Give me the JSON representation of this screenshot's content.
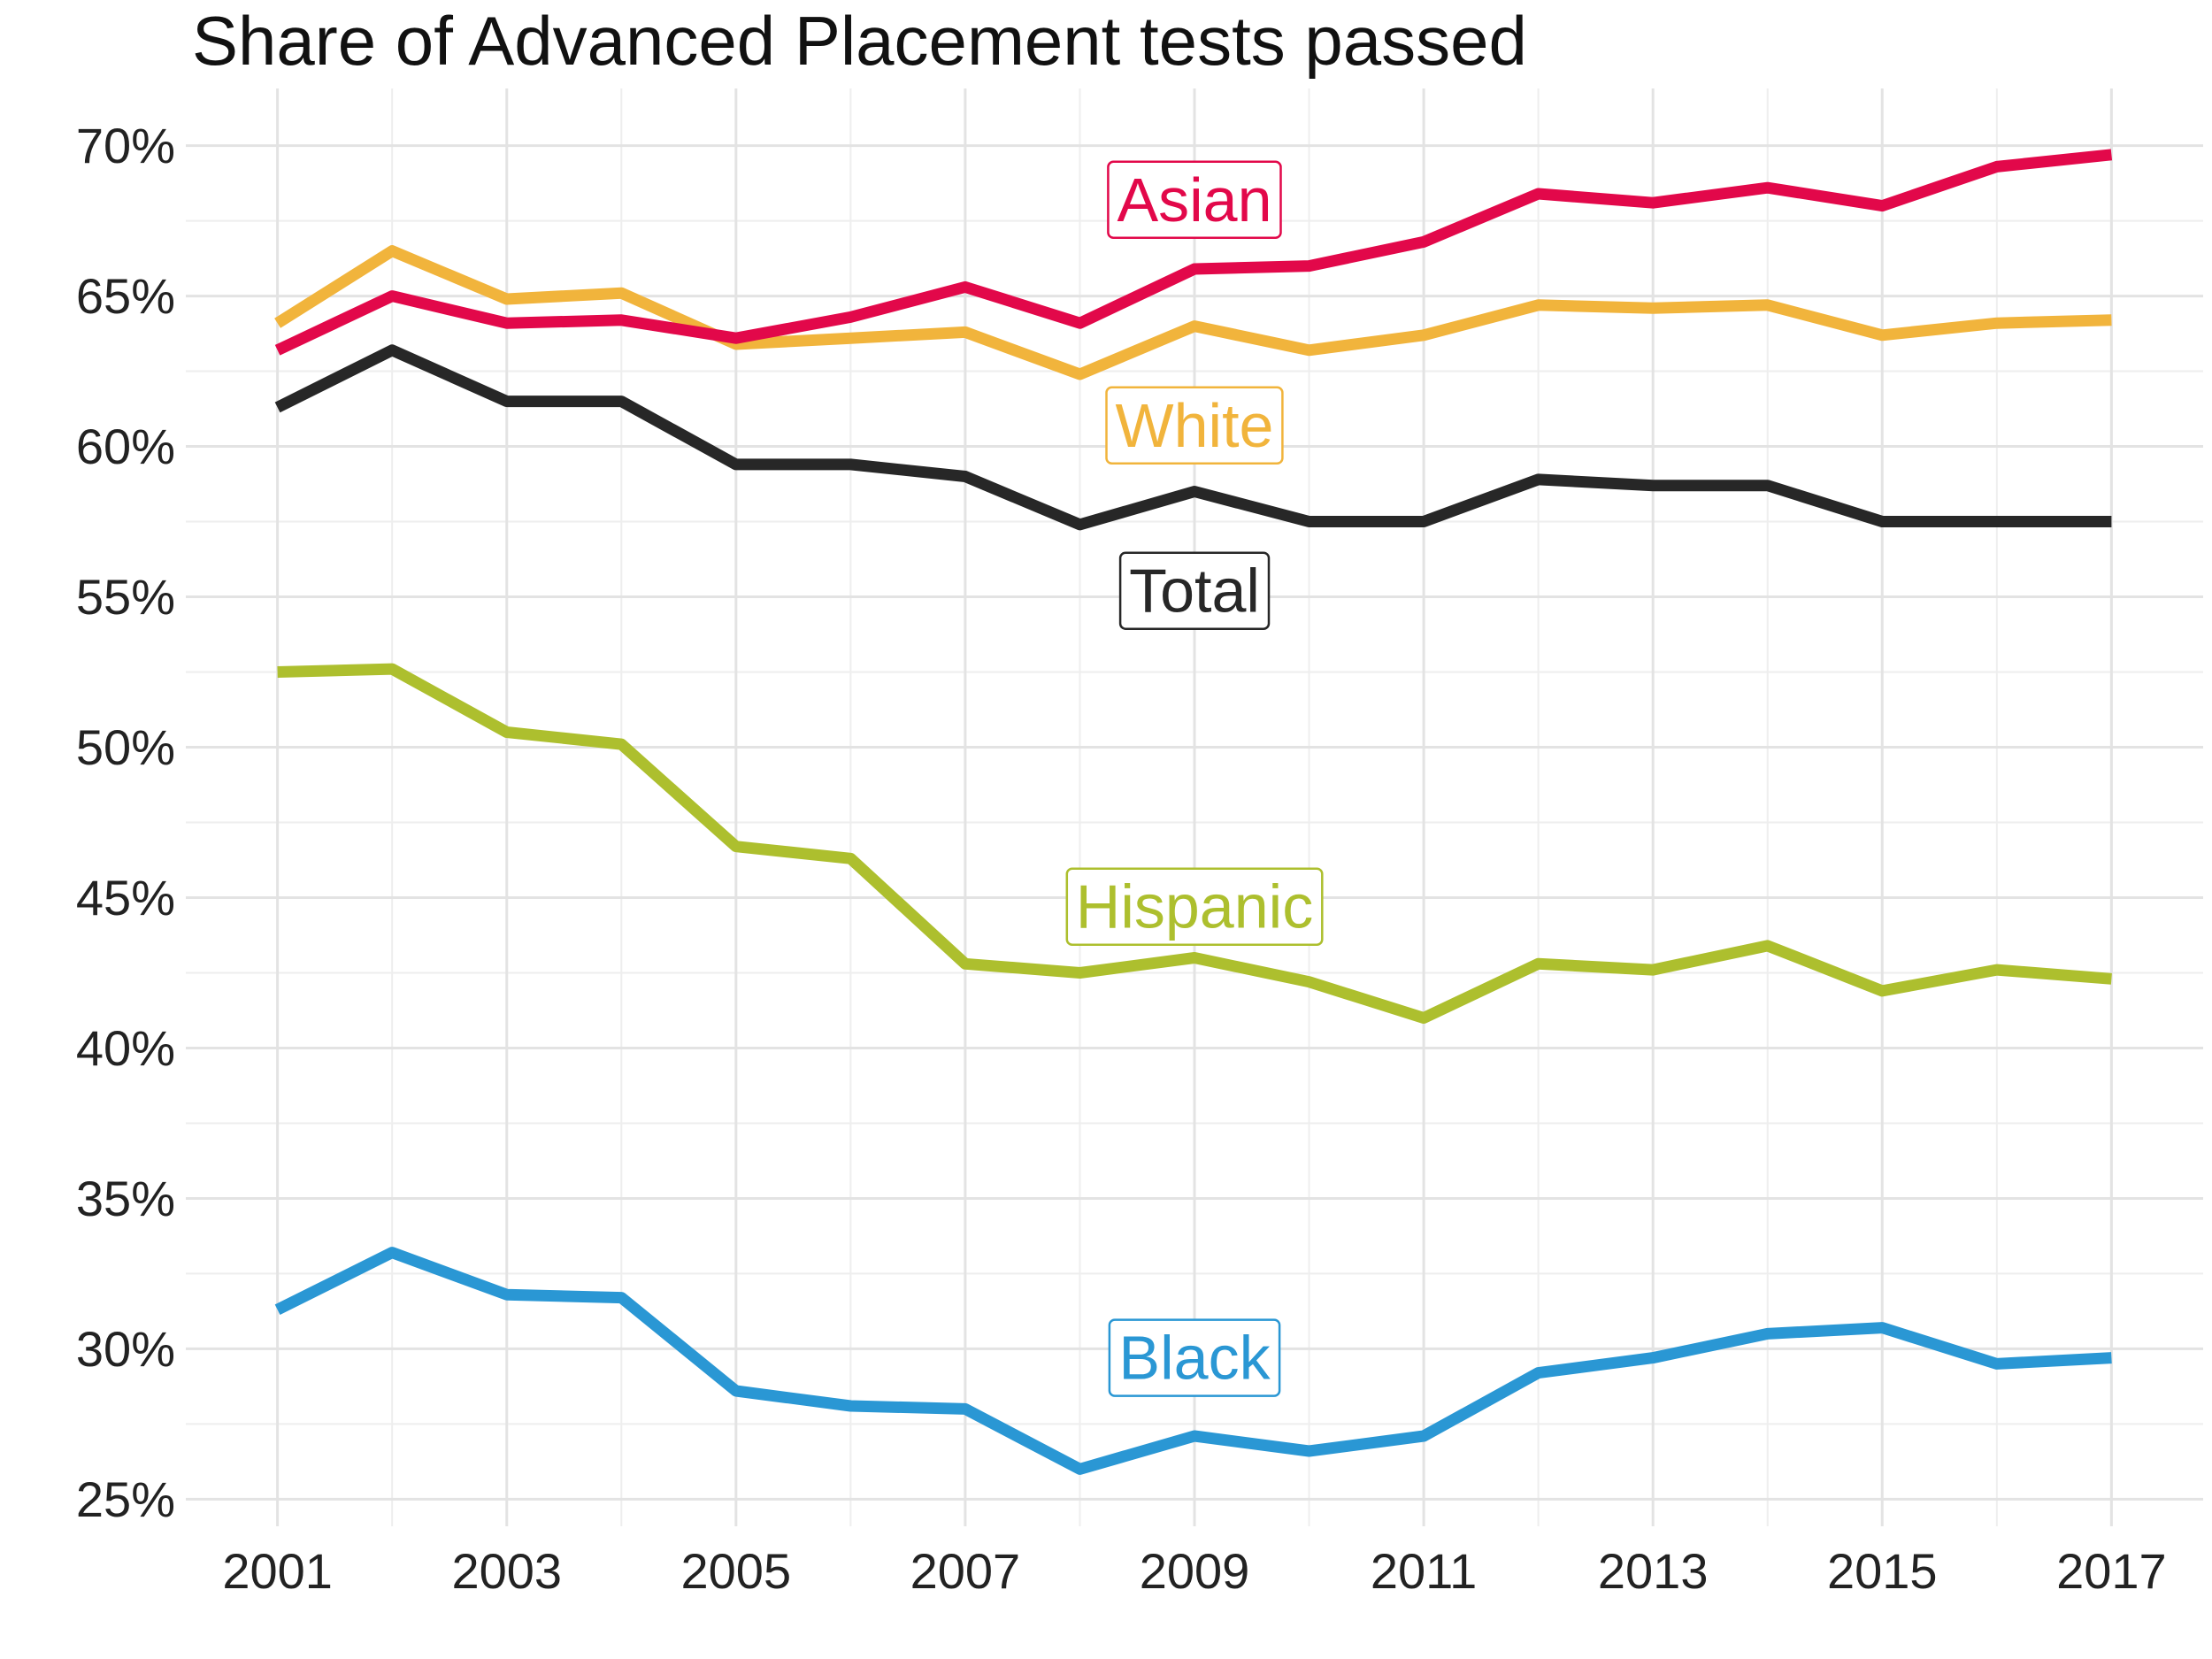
{
  "chart_data": {
    "type": "line",
    "title": "Share of Advanced Placement tests passed",
    "xlabel": "",
    "ylabel": "",
    "x": [
      2001,
      2002,
      2003,
      2004,
      2005,
      2006,
      2007,
      2008,
      2009,
      2010,
      2011,
      2012,
      2013,
      2014,
      2015,
      2016,
      2017
    ],
    "x_ticks": [
      2001,
      2003,
      2005,
      2007,
      2009,
      2011,
      2013,
      2015,
      2017
    ],
    "x_tick_labels": [
      "2001",
      "2003",
      "2005",
      "2007",
      "2009",
      "2011",
      "2013",
      "2015",
      "2017"
    ],
    "xlim": [
      2000.2,
      2017.8
    ],
    "y_ticks": [
      25,
      30,
      35,
      40,
      45,
      50,
      55,
      60,
      65,
      70
    ],
    "y_tick_labels": [
      "25%",
      "30%",
      "35%",
      "40%",
      "45%",
      "50%",
      "55%",
      "60%",
      "65%",
      "70%"
    ],
    "ylim": [
      24.1,
      71.9
    ],
    "grid": true,
    "legend": "direct labels",
    "series": [
      {
        "name": "Asian",
        "color": "#e2084a",
        "label_x": 2009,
        "label_y": 68.2,
        "values": [
          63.2,
          65.0,
          64.1,
          64.2,
          63.6,
          64.3,
          65.3,
          64.1,
          65.9,
          66.0,
          66.8,
          68.4,
          68.1,
          68.6,
          68.0,
          69.3,
          69.7
        ]
      },
      {
        "name": "White",
        "color": "#f1b43c",
        "label_x": 2009,
        "label_y": 60.7,
        "values": [
          64.1,
          66.5,
          64.9,
          65.1,
          63.4,
          63.6,
          63.8,
          62.4,
          64.0,
          63.2,
          63.7,
          64.7,
          64.6,
          64.7,
          63.7,
          64.1,
          64.2
        ]
      },
      {
        "name": "Total",
        "color": "#272727",
        "label_x": 2009,
        "label_y": 55.2,
        "values": [
          61.3,
          63.2,
          61.5,
          61.5,
          59.4,
          59.4,
          59.0,
          57.4,
          58.5,
          57.5,
          57.5,
          58.9,
          58.7,
          58.7,
          57.5,
          57.5,
          57.5
        ]
      },
      {
        "name": "Hispanic",
        "color": "#adbf2e",
        "label_x": 2009,
        "label_y": 44.7,
        "values": [
          52.5,
          52.6,
          50.5,
          50.1,
          46.7,
          46.3,
          42.8,
          42.5,
          43.0,
          42.2,
          41.0,
          42.8,
          42.6,
          43.4,
          41.9,
          42.6,
          42.3
        ]
      },
      {
        "name": "Black",
        "color": "#2a97d4",
        "label_x": 2009,
        "label_y": 29.7,
        "values": [
          31.3,
          33.2,
          31.8,
          31.7,
          28.6,
          28.1,
          28.0,
          26.0,
          27.1,
          26.6,
          27.1,
          29.2,
          29.7,
          30.5,
          30.7,
          29.5,
          29.7
        ]
      }
    ]
  }
}
